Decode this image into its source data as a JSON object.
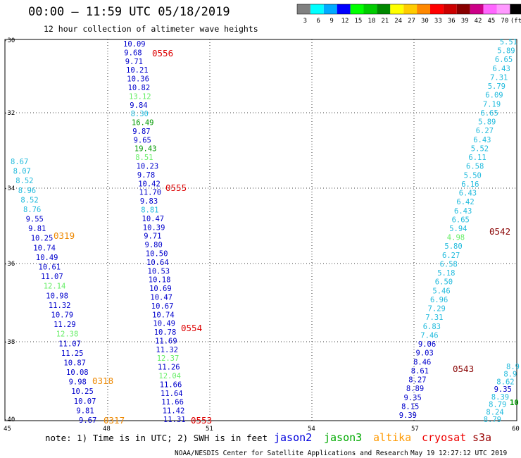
{
  "header": {
    "title": "00:00 – 11:59 UTC 05/18/2019",
    "subtitle": "12 hour collection of altimeter wave heights"
  },
  "legend": {
    "colors": [
      "#808080",
      "#00ffff",
      "#00aaff",
      "#0000ff",
      "#00ff00",
      "#00cc00",
      "#008800",
      "#ffff00",
      "#ffcc00",
      "#ff8800",
      "#ff0000",
      "#cc0000",
      "#880000",
      "#cc0088",
      "#ff66ff",
      "#ff99ff",
      "#000000"
    ],
    "labels": [
      "3",
      "6",
      "9",
      "12",
      "15",
      "18",
      "21",
      "24",
      "27",
      "30",
      "33",
      "36",
      "39",
      "42",
      "45",
      "70",
      "(ft)"
    ]
  },
  "axes": {
    "lat_labels": [
      "-30",
      "-32",
      "-34",
      "-36",
      "-38",
      "-40"
    ],
    "lon_labels": [
      "45",
      "48",
      "51",
      "54",
      "57",
      "60"
    ]
  },
  "notes": {
    "note": "note: 1) Time is in UTC; 2) SWH is in feet",
    "satellites": [
      {
        "name": "jason2",
        "color": "#0000dd"
      },
      {
        "name": "jason3",
        "color": "#00aa00"
      },
      {
        "name": "altika",
        "color": "#ff9900"
      },
      {
        "name": "cryosat",
        "color": "#ee0000"
      },
      {
        "name": "s3a",
        "color": "#990000"
      }
    ],
    "footer_left": "NOAA/NESDIS Center for Satellite Applications and Research",
    "footer_right": "May 19 12:27:12 UTC 2019"
  },
  "colors": {
    "jason2": "#0000cc",
    "jason3_light": "#66ee66",
    "jason3_dark": "#009900",
    "altika": "#ee8800",
    "cryosat": "#dd0000",
    "s3a": "#880000",
    "cyan": "#22bbdd"
  },
  "tracks": {
    "a": {
      "values": [
        "10.09",
        "9.68",
        "9.71",
        "10.21",
        "10.36",
        "10.82",
        "13.12",
        "9.84",
        "8.30",
        "16.49",
        "9.87",
        "9.65",
        "19.43",
        "8.51",
        "10.23",
        "9.78",
        "10.42",
        "11.70",
        "9.83",
        "8.81",
        "10.47",
        "10.39",
        "9.71",
        "9.80",
        "10.50",
        "10.64",
        "10.53",
        "10.18",
        "10.69",
        "10.47",
        "10.67",
        "10.74",
        "10.49",
        "10.78",
        "11.69",
        "11.32",
        "12.37",
        "11.26",
        "12.04",
        "11.66",
        "11.64",
        "11.66",
        "11.42",
        "11.31"
      ],
      "kinds": [
        "b",
        "b",
        "b",
        "b",
        "b",
        "b",
        "g",
        "b",
        "c",
        "G",
        "b",
        "b",
        "G",
        "g",
        "b",
        "b",
        "b",
        "b",
        "b",
        "c",
        "b",
        "b",
        "b",
        "b",
        "b",
        "b",
        "b",
        "b",
        "b",
        "b",
        "b",
        "b",
        "b",
        "b",
        "b",
        "b",
        "g",
        "b",
        "g",
        "b",
        "b",
        "b",
        "b",
        "b"
      ]
    },
    "b": {
      "values": [
        "8.67",
        "8.07",
        "8.52",
        "8.96",
        "8.52",
        "8.76",
        "9.55",
        "9.81",
        "10.25",
        "10.74",
        "10.49",
        "10.61",
        "11.07",
        "12.14",
        "10.98",
        "11.32",
        "10.79",
        "11.29",
        "12.38",
        "11.07",
        "11.25",
        "10.87",
        "10.08",
        "9.98",
        "10.25",
        "10.07",
        "9.81",
        "9.67"
      ],
      "kinds": [
        "c",
        "c",
        "c",
        "c",
        "c",
        "c",
        "b",
        "b",
        "b",
        "b",
        "b",
        "b",
        "b",
        "g",
        "b",
        "b",
        "b",
        "b",
        "g",
        "b",
        "b",
        "b",
        "b",
        "b",
        "b",
        "b",
        "b",
        "b"
      ]
    },
    "c": {
      "values": [
        "5.51",
        "5.89",
        "6.65",
        "6.43",
        "7.31",
        "5.79",
        "6.09",
        "7.19",
        "6.65",
        "5.89",
        "6.27",
        "6.43",
        "5.52",
        "6.11",
        "6.58",
        "5.50",
        "6.16",
        "6.43",
        "6.42",
        "6.43",
        "6.65",
        "5.94",
        "4.98",
        "5.80",
        "6.27",
        "6.58",
        "5.18",
        "6.50",
        "5.46",
        "6.96",
        "7.29",
        "7.31",
        "6.83",
        "7.46",
        "9.06",
        "9.03",
        "8.46",
        "8.61",
        "8.27",
        "8.89",
        "9.35",
        "8.15",
        "9.39"
      ],
      "kinds": [
        "c",
        "c",
        "c",
        "c",
        "c",
        "c",
        "c",
        "c",
        "c",
        "c",
        "c",
        "c",
        "c",
        "c",
        "c",
        "c",
        "c",
        "c",
        "c",
        "c",
        "c",
        "c",
        "g",
        "c",
        "c",
        "c",
        "c",
        "c",
        "c",
        "c",
        "c",
        "c",
        "c",
        "c",
        "b",
        "b",
        "b",
        "b",
        "b",
        "b",
        "b",
        "b",
        "b"
      ]
    },
    "d": {
      "values": [
        "8.9",
        "8.9",
        "8.62",
        "9.35",
        "8.39",
        "8.79",
        "8.24",
        "8.79"
      ],
      "kinds": [
        "c",
        "c",
        "c",
        "b",
        "c",
        "c",
        "c",
        "c"
      ]
    },
    "d_tail": "10"
  },
  "passes": [
    {
      "label": "0556",
      "kind": "cryo"
    },
    {
      "label": "0555",
      "kind": "cryo"
    },
    {
      "label": "0554",
      "kind": "cryo"
    },
    {
      "label": "0553",
      "kind": "cryo"
    },
    {
      "label": "0319",
      "kind": "altika"
    },
    {
      "label": "0318",
      "kind": "altika"
    },
    {
      "label": "0317",
      "kind": "altika"
    },
    {
      "label": "0542",
      "kind": "s3a"
    },
    {
      "label": "0543",
      "kind": "s3a"
    }
  ]
}
